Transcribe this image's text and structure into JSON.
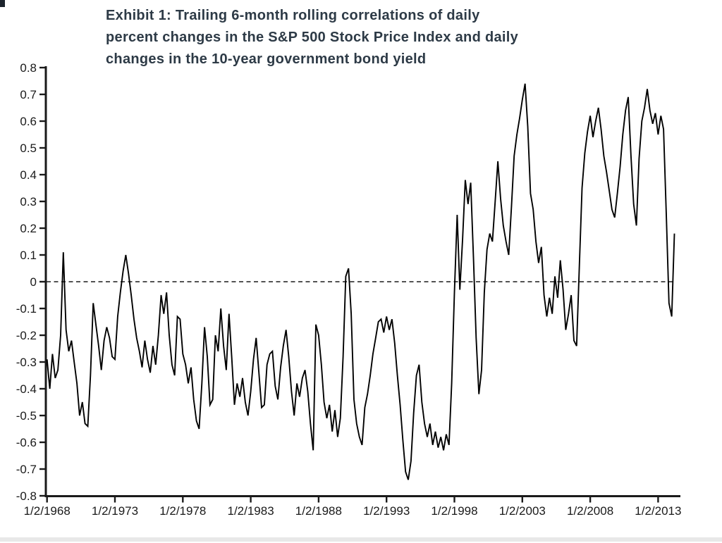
{
  "page": {
    "background": "#ffffff"
  },
  "header": {
    "color": "#2d3a46",
    "lines": [
      "Exhibit 1: Trailing 6-month rolling correlations of daily",
      "percent changes in the S&P 500 Stock Price Index and daily",
      "changes in the 10-year government bond yield"
    ]
  },
  "chart_data": {
    "type": "line",
    "title": "Exhibit 1: Trailing 6-month rolling correlations of daily percent changes in the S&P 500 Stock Price Index and daily changes in the 10-year government bond yield",
    "xlabel": "",
    "ylabel": "",
    "grid": "off",
    "legend": "none",
    "line_color": "#000000",
    "axis_color": "#1a1a1a",
    "tick_label_color": "#1a1a1a",
    "ylim": [
      -0.8,
      0.8
    ],
    "y_tick_labels": [
      "0.8",
      "0.7",
      "0.6",
      "0.5",
      "0.4",
      "0.3",
      "0.2",
      "0.1",
      "0",
      "-0.1",
      "-0.2",
      "-0.3",
      "-0.4",
      "-0.5",
      "-0.6",
      "-0.7",
      "-0.8"
    ],
    "x_tick_labels": [
      "1/2/1968",
      "1/2/1973",
      "1/2/1978",
      "1/2/1983",
      "1/2/1988",
      "1/2/1993",
      "1/2/1998",
      "1/2/2003",
      "1/2/2008",
      "1/2/2013"
    ],
    "x_tick_years": [
      1968,
      1973,
      1978,
      1983,
      1988,
      1993,
      1998,
      2003,
      2008,
      2013
    ],
    "zero_line": {
      "value": 0,
      "dashed": true
    },
    "series": [
      {
        "name": "trailing-6-month-rolling-correlation",
        "x_start_year": 1968.0,
        "x_step_years": 0.2,
        "values": [
          -0.29,
          -0.4,
          -0.27,
          -0.36,
          -0.33,
          -0.2,
          0.11,
          -0.18,
          -0.26,
          -0.22,
          -0.3,
          -0.38,
          -0.5,
          -0.45,
          -0.53,
          -0.54,
          -0.35,
          -0.08,
          -0.16,
          -0.24,
          -0.33,
          -0.22,
          -0.17,
          -0.21,
          -0.28,
          -0.29,
          -0.13,
          -0.04,
          0.04,
          0.1,
          0.03,
          -0.05,
          -0.14,
          -0.21,
          -0.26,
          -0.32,
          -0.22,
          -0.29,
          -0.34,
          -0.24,
          -0.31,
          -0.2,
          -0.05,
          -0.12,
          -0.04,
          -0.2,
          -0.31,
          -0.35,
          -0.13,
          -0.14,
          -0.27,
          -0.31,
          -0.38,
          -0.32,
          -0.44,
          -0.52,
          -0.55,
          -0.38,
          -0.17,
          -0.28,
          -0.46,
          -0.44,
          -0.2,
          -0.26,
          -0.1,
          -0.24,
          -0.33,
          -0.12,
          -0.28,
          -0.46,
          -0.38,
          -0.43,
          -0.36,
          -0.45,
          -0.5,
          -0.41,
          -0.29,
          -0.21,
          -0.34,
          -0.47,
          -0.46,
          -0.31,
          -0.27,
          -0.26,
          -0.39,
          -0.44,
          -0.32,
          -0.24,
          -0.18,
          -0.28,
          -0.41,
          -0.5,
          -0.38,
          -0.43,
          -0.36,
          -0.33,
          -0.41,
          -0.53,
          -0.63,
          -0.16,
          -0.2,
          -0.31,
          -0.45,
          -0.51,
          -0.46,
          -0.56,
          -0.48,
          -0.58,
          -0.51,
          -0.28,
          0.02,
          0.05,
          -0.12,
          -0.44,
          -0.53,
          -0.58,
          -0.61,
          -0.47,
          -0.42,
          -0.35,
          -0.27,
          -0.21,
          -0.15,
          -0.14,
          -0.19,
          -0.13,
          -0.18,
          -0.14,
          -0.23,
          -0.35,
          -0.46,
          -0.59,
          -0.71,
          -0.74,
          -0.67,
          -0.49,
          -0.35,
          -0.31,
          -0.45,
          -0.53,
          -0.58,
          -0.53,
          -0.61,
          -0.56,
          -0.62,
          -0.58,
          -0.63,
          -0.57,
          -0.61,
          -0.38,
          -0.04,
          0.25,
          -0.03,
          0.16,
          0.38,
          0.29,
          0.37,
          0.09,
          -0.21,
          -0.42,
          -0.33,
          -0.04,
          0.12,
          0.18,
          0.15,
          0.3,
          0.45,
          0.31,
          0.21,
          0.15,
          0.1,
          0.28,
          0.47,
          0.55,
          0.61,
          0.68,
          0.74,
          0.58,
          0.33,
          0.27,
          0.15,
          0.07,
          0.13,
          -0.05,
          -0.13,
          -0.06,
          -0.12,
          0.02,
          -0.06,
          0.08,
          -0.03,
          -0.18,
          -0.12,
          -0.05,
          -0.22,
          -0.24,
          0.06,
          0.35,
          0.48,
          0.56,
          0.62,
          0.54,
          0.6,
          0.65,
          0.57,
          0.47,
          0.41,
          0.34,
          0.27,
          0.24,
          0.33,
          0.43,
          0.55,
          0.64,
          0.69,
          0.47,
          0.29,
          0.21,
          0.46,
          0.6,
          0.65,
          0.72,
          0.64,
          0.59,
          0.63,
          0.55,
          0.62,
          0.57,
          0.25,
          -0.08,
          -0.13,
          0.18
        ]
      }
    ]
  },
  "footer": {
    "bottom_strip_color": "#d9d9d9"
  }
}
